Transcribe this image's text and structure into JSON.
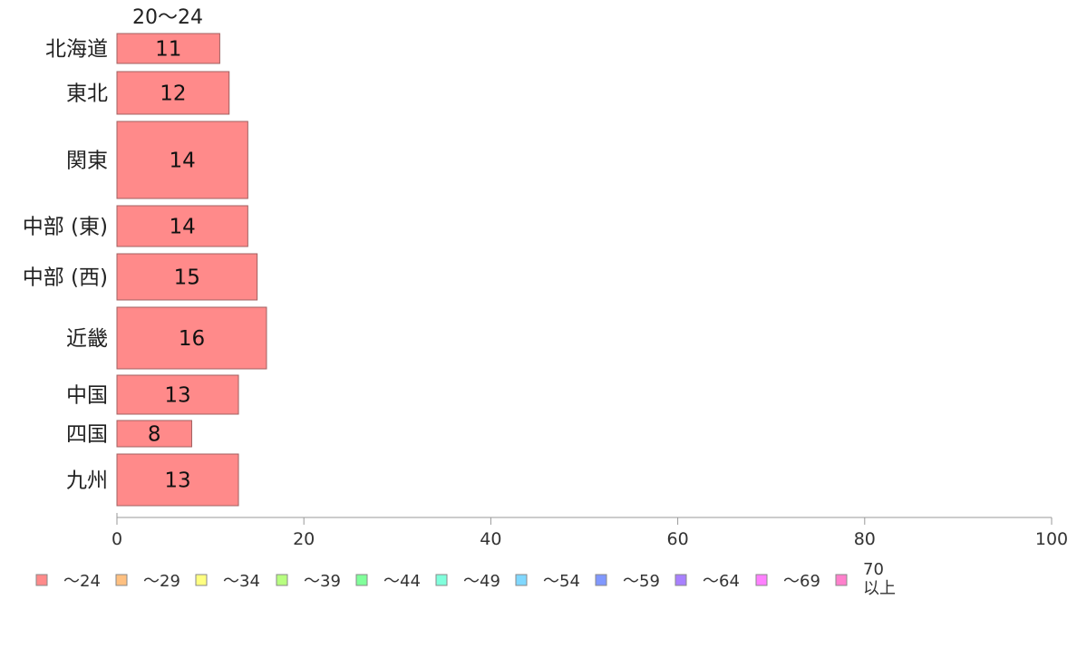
{
  "chart_data": {
    "type": "bar",
    "orientation": "horizontal",
    "column_header": "20〜24",
    "categories": [
      "北海道",
      "東北",
      "関東",
      "中部 (東)",
      "中部 (西)",
      "近畿",
      "中国",
      "四国",
      "九州"
    ],
    "series": [
      {
        "name": "〜24",
        "values": [
          11,
          12,
          14,
          14,
          15,
          16,
          13,
          8,
          13
        ]
      }
    ],
    "bar_labels": [
      "11",
      "12",
      "14",
      "14",
      "15",
      "16",
      "13",
      "8",
      "13"
    ],
    "xlim": [
      0,
      100
    ],
    "xticks": [
      0,
      20,
      40,
      60,
      80,
      100
    ],
    "xtick_labels": [
      "0",
      "20",
      "40",
      "60",
      "80",
      "100"
    ],
    "grid": false,
    "legend_position": "bottom",
    "legend": [
      {
        "label": "〜24",
        "color": "#ff8a8a"
      },
      {
        "label": "〜29",
        "color": "#ffc080"
      },
      {
        "label": "〜34",
        "color": "#ffff80"
      },
      {
        "label": "〜39",
        "color": "#b8ff80"
      },
      {
        "label": "〜44",
        "color": "#80ff9a"
      },
      {
        "label": "〜49",
        "color": "#80ffdc"
      },
      {
        "label": "〜54",
        "color": "#80d8ff"
      },
      {
        "label": "〜59",
        "color": "#8098ff"
      },
      {
        "label": "〜64",
        "color": "#a880ff"
      },
      {
        "label": "〜69",
        "color": "#ff80ff"
      },
      {
        "label": "70\n以上",
        "color": "#ff80cc"
      }
    ],
    "bar_color": "#ff8a8a",
    "bar_stroke": "#a06060"
  }
}
